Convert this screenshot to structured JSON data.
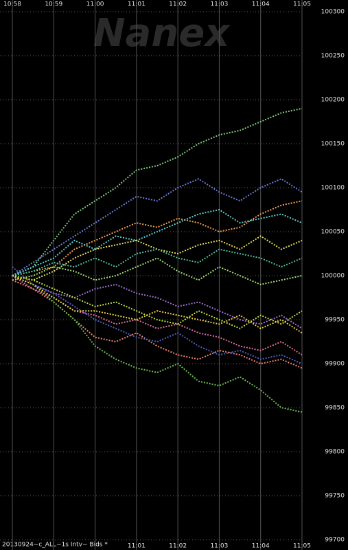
{
  "chart_data": {
    "type": "line",
    "watermark": "Nanex",
    "footer": "20130924~c_ALL~1s Intv~ Bids *",
    "xlim": [
      0,
      7
    ],
    "xticks": [
      {
        "value": 0,
        "label": "10:58"
      },
      {
        "value": 1,
        "label": "10:59"
      },
      {
        "value": 2,
        "label": "11:00"
      },
      {
        "value": 3,
        "label": "11:01"
      },
      {
        "value": 4,
        "label": "11:02"
      },
      {
        "value": 5,
        "label": "11:03"
      },
      {
        "value": 6,
        "label": "11:04"
      },
      {
        "value": 7,
        "label": "11:05"
      }
    ],
    "ylim": [
      99700,
      100300
    ],
    "yticks": [
      99700,
      99750,
      99800,
      99850,
      99900,
      99950,
      100000,
      100050,
      100100,
      100150,
      100200,
      100250,
      100300
    ],
    "grid": true,
    "x": [
      0,
      0.5,
      1,
      1.5,
      2,
      2.5,
      3,
      3.5,
      4,
      4.5,
      5,
      5.5,
      6,
      6.5,
      7
    ],
    "series": [
      {
        "color": "#7fd07f",
        "values": [
          100000,
          100010,
          100040,
          100070,
          100085,
          100100,
          100120,
          100125,
          100135,
          100150,
          100160,
          100165,
          100175,
          100185,
          100190
        ]
      },
      {
        "color": "#6a7fd8",
        "values": [
          100000,
          100015,
          100030,
          100045,
          100060,
          100075,
          100090,
          100085,
          100100,
          100110,
          100095,
          100085,
          100100,
          100110,
          100095
        ]
      },
      {
        "color": "#f0a050",
        "values": [
          100000,
          100005,
          100010,
          100030,
          100040,
          100050,
          100060,
          100055,
          100065,
          100060,
          100050,
          100055,
          100070,
          100080,
          100085
        ]
      },
      {
        "color": "#60d0d0",
        "values": [
          100000,
          100010,
          100020,
          100040,
          100030,
          100045,
          100040,
          100050,
          100060,
          100070,
          100075,
          100060,
          100065,
          100070,
          100060
        ]
      },
      {
        "color": "#e8e060",
        "values": [
          100000,
          99995,
          100005,
          100020,
          100030,
          100035,
          100040,
          100030,
          100025,
          100035,
          100040,
          100030,
          100045,
          100030,
          100040
        ]
      },
      {
        "color": "#50c0a0",
        "values": [
          100000,
          100005,
          100015,
          100010,
          100020,
          100010,
          100025,
          100030,
          100020,
          100015,
          100030,
          100025,
          100020,
          100010,
          100020
        ]
      },
      {
        "color": "#a0e070",
        "values": [
          99995,
          100000,
          100010,
          100005,
          99995,
          100000,
          100010,
          100020,
          100005,
          99995,
          100010,
          100000,
          99990,
          99995,
          100000
        ]
      },
      {
        "color": "#a070d0",
        "values": [
          100000,
          99990,
          99980,
          99975,
          99985,
          99990,
          99980,
          99975,
          99965,
          99970,
          99960,
          99950,
          99945,
          99955,
          99940
        ]
      },
      {
        "color": "#e070a0",
        "values": [
          100000,
          99985,
          99975,
          99960,
          99955,
          99945,
          99950,
          99940,
          99945,
          99935,
          99930,
          99920,
          99915,
          99925,
          99910
        ]
      },
      {
        "color": "#f08070",
        "values": [
          99995,
          99985,
          99970,
          99950,
          99930,
          99925,
          99935,
          99920,
          99910,
          99905,
          99915,
          99910,
          99900,
          99905,
          99895
        ]
      },
      {
        "color": "#70c050",
        "values": [
          100000,
          99990,
          99970,
          99950,
          99920,
          99905,
          99895,
          99890,
          99900,
          99880,
          99875,
          99885,
          99870,
          99850,
          99845
        ]
      },
      {
        "color": "#f0d040",
        "values": [
          100000,
          99990,
          99975,
          99960,
          99960,
          99955,
          99950,
          99960,
          99955,
          99950,
          99945,
          99955,
          99940,
          99950,
          99935
        ]
      },
      {
        "color": "#5060c0",
        "values": [
          100010,
          99990,
          99980,
          99965,
          99950,
          99940,
          99930,
          99925,
          99935,
          99920,
          99910,
          99915,
          99905,
          99910,
          99900
        ]
      },
      {
        "color": "#c0e040",
        "values": [
          100000,
          99995,
          99985,
          99975,
          99965,
          99970,
          99960,
          99950,
          99945,
          99960,
          99950,
          99940,
          99955,
          99945,
          99960
        ]
      }
    ]
  }
}
